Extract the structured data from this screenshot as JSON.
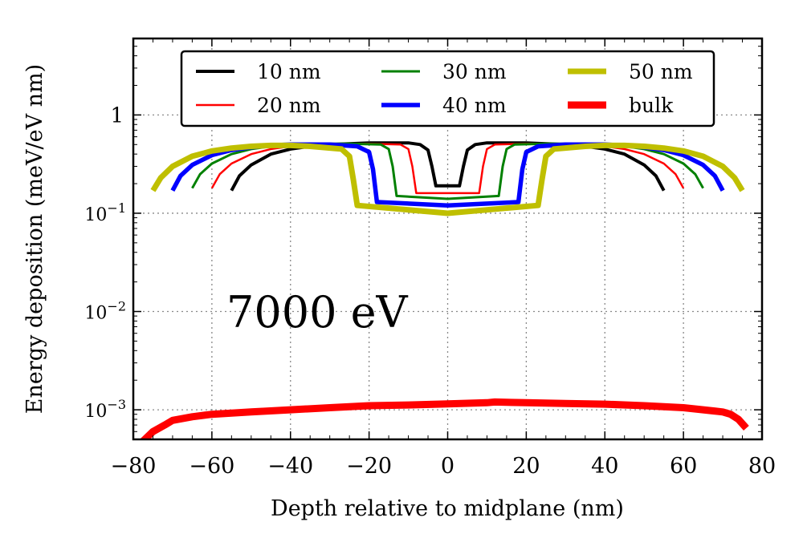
{
  "chart_data": {
    "type": "line",
    "annotation": "7000 eV",
    "xlabel": "Depth relative to midplane (nm)",
    "ylabel": "Energy deposition (meV/eV nm)",
    "xlim": [
      -80,
      80
    ],
    "ylim": [
      0.0005,
      6
    ],
    "yscale": "log",
    "grid": true,
    "legend_position": "top",
    "x_ticks": [
      -80,
      -60,
      -40,
      -20,
      0,
      20,
      40,
      60,
      80
    ],
    "x_tick_labels": [
      "−80",
      "−60",
      "−40",
      "−20",
      "0",
      "20",
      "40",
      "60",
      "80"
    ],
    "y_ticks": [
      {
        "value": 1,
        "base": "1",
        "exp": ""
      },
      {
        "value": 0.1,
        "base": "10",
        "exp": "−1"
      },
      {
        "value": 0.01,
        "base": "10",
        "exp": "−2"
      },
      {
        "value": 0.001,
        "base": "10",
        "exp": "−3"
      }
    ],
    "series": [
      {
        "name": "10 nm",
        "color": "#000000",
        "x": [
          -55,
          -53,
          -50,
          -45,
          -40,
          -35,
          -30,
          -20,
          -10,
          -7,
          -5,
          -4,
          -3,
          3,
          4,
          5,
          7,
          10,
          20,
          30,
          35,
          40,
          45,
          50,
          53,
          55
        ],
        "y": [
          0.17,
          0.24,
          0.31,
          0.4,
          0.45,
          0.48,
          0.5,
          0.52,
          0.52,
          0.5,
          0.44,
          0.3,
          0.19,
          0.19,
          0.3,
          0.44,
          0.5,
          0.52,
          0.52,
          0.5,
          0.48,
          0.45,
          0.4,
          0.31,
          0.24,
          0.17
        ]
      },
      {
        "name": "20 nm",
        "color": "#ff0000",
        "x": [
          -60,
          -58,
          -55,
          -50,
          -45,
          -40,
          -35,
          -30,
          -20,
          -12,
          -10,
          -9,
          -8,
          8,
          9,
          10,
          12,
          20,
          30,
          35,
          40,
          45,
          50,
          55,
          58,
          60
        ],
        "y": [
          0.18,
          0.25,
          0.32,
          0.4,
          0.45,
          0.48,
          0.5,
          0.51,
          0.51,
          0.5,
          0.45,
          0.3,
          0.16,
          0.16,
          0.3,
          0.45,
          0.5,
          0.51,
          0.51,
          0.5,
          0.48,
          0.45,
          0.4,
          0.32,
          0.25,
          0.18
        ]
      },
      {
        "name": "30 nm",
        "color": "#008000",
        "x": [
          -65,
          -63,
          -60,
          -55,
          -50,
          -45,
          -40,
          -35,
          -25,
          -17,
          -15,
          -14,
          -13,
          0,
          13,
          14,
          15,
          17,
          25,
          35,
          40,
          45,
          50,
          55,
          60,
          63,
          65
        ],
        "y": [
          0.18,
          0.25,
          0.32,
          0.4,
          0.45,
          0.48,
          0.5,
          0.51,
          0.51,
          0.5,
          0.45,
          0.3,
          0.15,
          0.14,
          0.15,
          0.3,
          0.45,
          0.5,
          0.51,
          0.51,
          0.5,
          0.48,
          0.45,
          0.4,
          0.32,
          0.25,
          0.18
        ]
      },
      {
        "name": "40 nm",
        "color": "#0000ff",
        "x": [
          -70,
          -68,
          -65,
          -60,
          -55,
          -50,
          -45,
          -40,
          -30,
          -23,
          -20,
          -19,
          -18,
          0,
          18,
          19,
          20,
          23,
          30,
          40,
          45,
          50,
          55,
          60,
          65,
          68,
          70
        ],
        "y": [
          0.17,
          0.24,
          0.31,
          0.39,
          0.44,
          0.47,
          0.49,
          0.5,
          0.5,
          0.48,
          0.42,
          0.28,
          0.13,
          0.12,
          0.13,
          0.28,
          0.42,
          0.48,
          0.5,
          0.5,
          0.49,
          0.47,
          0.44,
          0.39,
          0.31,
          0.24,
          0.17
        ]
      },
      {
        "name": "50 nm",
        "color": "#bfbf00",
        "x": [
          -75,
          -73,
          -70,
          -65,
          -60,
          -55,
          -50,
          -45,
          -40,
          -35,
          -27,
          -25,
          -24,
          -23,
          0,
          23,
          24,
          25,
          27,
          35,
          40,
          45,
          50,
          55,
          60,
          65,
          70,
          73,
          75
        ],
        "y": [
          0.17,
          0.23,
          0.3,
          0.38,
          0.43,
          0.46,
          0.48,
          0.49,
          0.49,
          0.48,
          0.45,
          0.38,
          0.22,
          0.12,
          0.1,
          0.12,
          0.22,
          0.38,
          0.45,
          0.48,
          0.49,
          0.49,
          0.48,
          0.46,
          0.43,
          0.38,
          0.3,
          0.23,
          0.17
        ]
      },
      {
        "name": "bulk",
        "color": "#ff0000",
        "x": [
          -78,
          -75,
          -72,
          -70,
          -65,
          -60,
          -50,
          -40,
          -30,
          -20,
          -10,
          0,
          10,
          12,
          20,
          30,
          40,
          50,
          60,
          65,
          70,
          72,
          74,
          76
        ],
        "y": [
          0.00046,
          0.0006,
          0.0007,
          0.00078,
          0.00085,
          0.0009,
          0.00095,
          0.001,
          0.00105,
          0.0011,
          0.00112,
          0.00115,
          0.00118,
          0.0012,
          0.00118,
          0.00116,
          0.00114,
          0.0011,
          0.00105,
          0.001,
          0.00095,
          0.0009,
          0.0008,
          0.00065
        ]
      }
    ]
  }
}
